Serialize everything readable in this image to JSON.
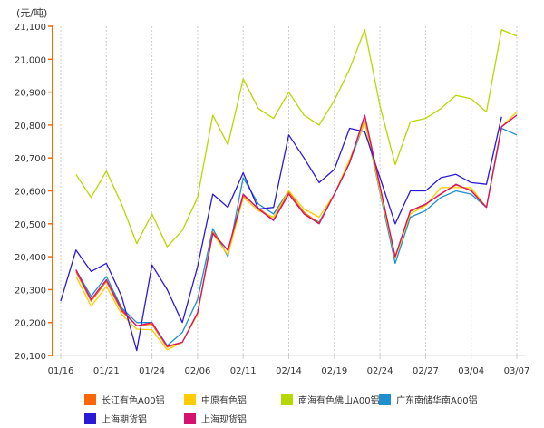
{
  "chart_data": {
    "type": "line",
    "title": "",
    "unit_label": "(元/吨)",
    "xlabel": "",
    "ylabel": "(元/吨)",
    "ylim": [
      20100,
      21100
    ],
    "yticks": [
      20100,
      20200,
      20300,
      20400,
      20500,
      20600,
      20700,
      20800,
      20900,
      21000,
      21100
    ],
    "ytick_labels": [
      "20,100",
      "20,200",
      "20,300",
      "20,400",
      "20,500",
      "20,600",
      "20,700",
      "20,800",
      "20,900",
      "21,000",
      "21,100"
    ],
    "x_tick_labels": [
      "01/16",
      "01/21",
      "01/24",
      "02/06",
      "02/11",
      "02/14",
      "02/19",
      "02/24",
      "02/27",
      "03/04",
      "03/07"
    ],
    "x_tick_every": 3,
    "num_points": 31,
    "grid": {
      "vertical": true,
      "horizontal": false,
      "style": "dotted"
    },
    "legend_position": "bottom",
    "series": [
      {
        "name": "长江有色A00铝",
        "color": "#FF6600",
        "values": [
          null,
          20355,
          20265,
          20325,
          20235,
          20190,
          20195,
          20125,
          20140,
          20228,
          20475,
          20418,
          20585,
          20548,
          20512,
          20595,
          20535,
          20502,
          20590,
          20685,
          20825,
          20612,
          20400,
          20538,
          20558,
          20592,
          20618,
          20602,
          20550,
          20795,
          20830
        ]
      },
      {
        "name": "中原有色铝",
        "color": "#FFCC00",
        "values": [
          null,
          20340,
          20250,
          20310,
          20225,
          20180,
          20178,
          20117,
          20140,
          20225,
          20470,
          20405,
          20580,
          20540,
          20520,
          20600,
          20545,
          20520,
          20590,
          20695,
          20810,
          20602,
          20395,
          20530,
          20555,
          20610,
          20610,
          20610,
          20550,
          20795,
          20840
        ]
      },
      {
        "name": "南海有色佛山A00铝",
        "color": "#B5D900",
        "values": [
          null,
          20650,
          20580,
          20660,
          20560,
          20440,
          20530,
          20430,
          20480,
          20580,
          20830,
          20740,
          20940,
          20850,
          20820,
          20900,
          20830,
          20800,
          20875,
          20970,
          21090,
          20858,
          20680,
          20810,
          20820,
          20850,
          20890,
          20880,
          20840,
          21090,
          21070
        ]
      },
      {
        "name": "广东南储华南A00铝",
        "color": "#1E90CF",
        "values": [
          null,
          20360,
          20280,
          20340,
          20245,
          20200,
          20200,
          20130,
          20170,
          20270,
          20485,
          20400,
          20640,
          20560,
          20530,
          20600,
          20530,
          20505,
          20590,
          20685,
          20810,
          20595,
          20380,
          20520,
          20540,
          20580,
          20600,
          20590,
          20550,
          20790,
          20770
        ]
      },
      {
        "name": "上海期货铝",
        "color": "#2A1AD6",
        "values": [
          20265,
          20420,
          20355,
          20380,
          20280,
          20115,
          20375,
          20300,
          20200,
          20370,
          20590,
          20550,
          20655,
          20545,
          20550,
          20770,
          20700,
          20625,
          20665,
          20790,
          20780,
          20640,
          20500,
          20600,
          20600,
          20640,
          20650,
          20625,
          20620,
          20825,
          null
        ]
      },
      {
        "name": "上海现货铝",
        "color": "#D4136F",
        "values": [
          null,
          20360,
          20270,
          20330,
          20240,
          20190,
          20200,
          20128,
          20140,
          20230,
          20470,
          20420,
          20590,
          20545,
          20510,
          20590,
          20530,
          20500,
          20590,
          20685,
          20830,
          20615,
          20400,
          20540,
          20560,
          20590,
          20620,
          20600,
          20550,
          20795,
          20830
        ]
      }
    ]
  },
  "legend": {
    "items": [
      {
        "label": "长江有色A00铝",
        "color": "#FF6600"
      },
      {
        "label": "中原有色铝",
        "color": "#FFCC00"
      },
      {
        "label": "南海有色佛山A00铝",
        "color": "#B5D900"
      },
      {
        "label": "广东南储华南A00铝",
        "color": "#1E90CF"
      },
      {
        "label": "上海期货铝",
        "color": "#2A1AD6"
      },
      {
        "label": "上海现货铝",
        "color": "#D4136F"
      }
    ]
  },
  "style": {
    "axis_color": "#FF6600",
    "grid_color": "#CCCCCC",
    "baseline_color": "#DDDDDD"
  }
}
